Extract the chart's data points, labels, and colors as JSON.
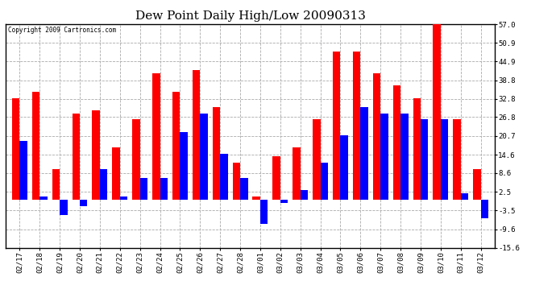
{
  "title": "Dew Point Daily High/Low 20090313",
  "copyright_text": "Copyright 2009 Cartronics.com",
  "dates": [
    "02/17",
    "02/18",
    "02/19",
    "02/20",
    "02/21",
    "02/22",
    "02/23",
    "02/24",
    "02/25",
    "02/26",
    "02/27",
    "02/28",
    "03/01",
    "03/02",
    "03/03",
    "03/04",
    "03/05",
    "03/06",
    "03/07",
    "03/08",
    "03/09",
    "03/10",
    "03/11",
    "03/12"
  ],
  "highs": [
    33.0,
    35.0,
    10.0,
    28.0,
    29.0,
    17.0,
    26.0,
    41.0,
    35.0,
    42.0,
    30.0,
    12.0,
    1.0,
    14.0,
    17.0,
    26.0,
    48.0,
    48.0,
    41.0,
    37.0,
    33.0,
    57.0,
    26.0,
    10.0
  ],
  "lows": [
    19.0,
    1.0,
    -5.0,
    -2.0,
    10.0,
    1.0,
    7.0,
    7.0,
    22.0,
    28.0,
    15.0,
    7.0,
    -8.0,
    -1.0,
    3.0,
    12.0,
    21.0,
    30.0,
    28.0,
    28.0,
    26.0,
    26.0,
    2.0,
    -6.0
  ],
  "ylim": [
    -15.6,
    57.0
  ],
  "yticks": [
    -15.6,
    -9.6,
    -3.5,
    2.5,
    8.6,
    14.6,
    20.7,
    26.8,
    32.8,
    38.8,
    44.9,
    50.9,
    57.0
  ],
  "bar_color_high": "#FF0000",
  "bar_color_low": "#0000FF",
  "bg_color": "#FFFFFF",
  "plot_bg_color": "#FFFFFF",
  "grid_color": "#AAAAAA",
  "title_fontsize": 11,
  "tick_fontsize": 6.5,
  "bar_width": 0.38
}
